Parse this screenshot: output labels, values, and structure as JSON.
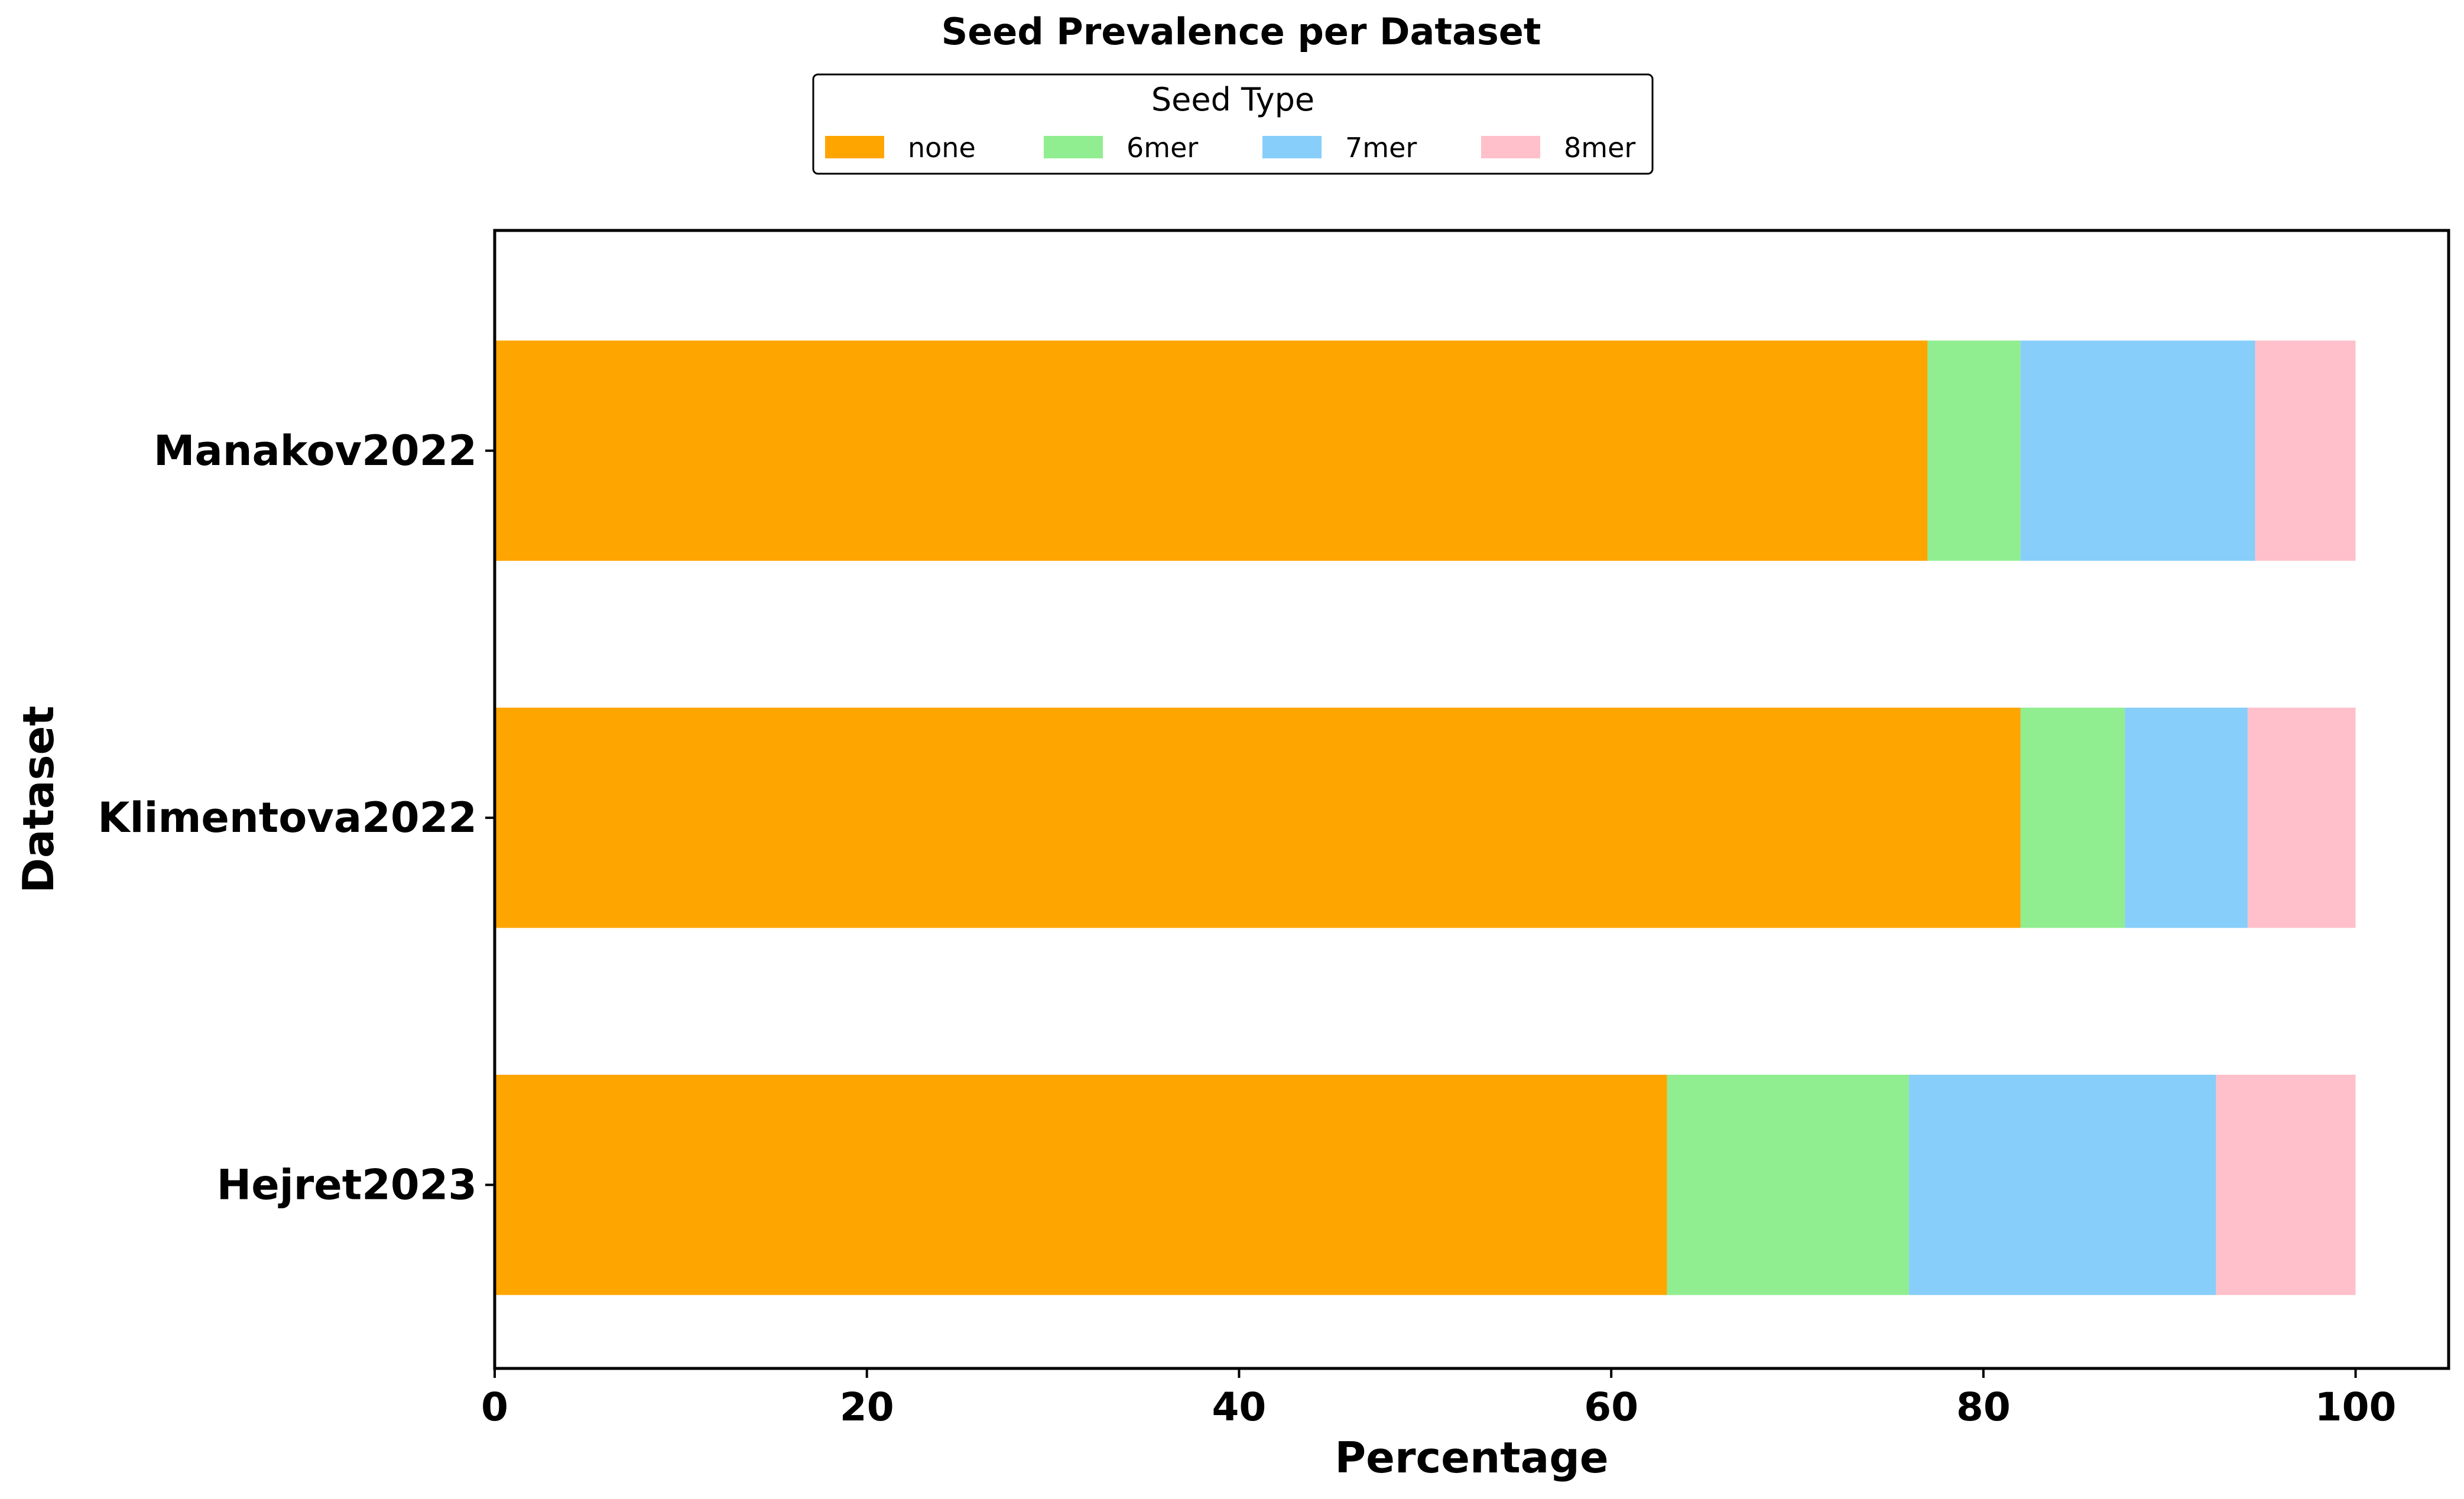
{
  "chart_data": {
    "type": "bar",
    "orientation": "horizontal",
    "stacked": true,
    "title": "Seed Prevalence per Dataset",
    "xlabel": "Percentage",
    "ylabel": "Dataset",
    "xlim": [
      0,
      105
    ],
    "xticks": [
      0,
      20,
      40,
      60,
      80,
      100
    ],
    "grid": false,
    "legend": {
      "title": "Seed Type",
      "placement": "top-center"
    },
    "categories": [
      "Manakov2022",
      "Klimentova2022",
      "Hejret2023"
    ],
    "series": [
      {
        "name": "none",
        "color": "#ffa500",
        "values": [
          77.0,
          82.0,
          63.0
        ]
      },
      {
        "name": "6mer",
        "color": "#90ee90",
        "values": [
          5.0,
          5.6,
          13.0
        ]
      },
      {
        "name": "7mer",
        "color": "#87cefa",
        "values": [
          12.6,
          6.6,
          16.5
        ]
      },
      {
        "name": "8mer",
        "color": "#ffc0cb",
        "values": [
          5.4,
          5.8,
          7.5
        ]
      }
    ]
  }
}
